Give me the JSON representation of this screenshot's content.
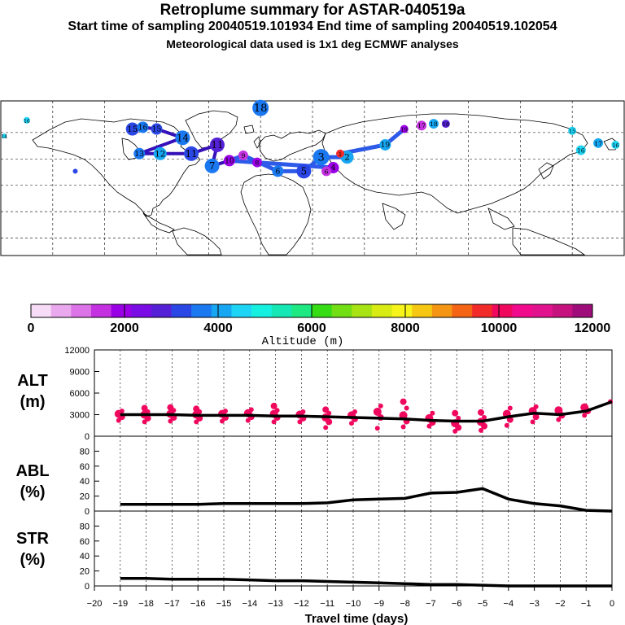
{
  "header": {
    "title": "Retroplume summary for ASTAR-040519a",
    "sampling": "Start time of sampling 20040519.101934     End time of sampling 20040519.102054",
    "met": "Meteorological data used is 1x1 deg ECMWF analyses"
  },
  "colorbar": {
    "colors": [
      "#f7dcf7",
      "#eaa9ee",
      "#dc73e6",
      "#c431e0",
      "#9a00e6",
      "#7a0de6",
      "#5521d6",
      "#2a47e6",
      "#1a78f0",
      "#17a7f2",
      "#1ed4f4",
      "#16f0e0",
      "#15e8b4",
      "#1ee881",
      "#36dc14",
      "#72de14",
      "#a8e414",
      "#d8ec14",
      "#f6f41a",
      "#f6c814",
      "#f49614",
      "#f46414",
      "#f22a2a",
      "#f0085e",
      "#f20a8c",
      "#e2128e",
      "#c6127e",
      "#9e0d7a"
    ],
    "labels": [
      "0",
      "2000",
      "4000",
      "6000",
      "8000",
      "10000",
      "12000"
    ],
    "unit_label": "Altitude (m)"
  },
  "map": {
    "trajectory_color": "#2d5ae8",
    "labels": [
      "1",
      "2",
      "3",
      "4",
      "5",
      "6",
      "7",
      "8",
      "9",
      "10",
      "11",
      "12",
      "13",
      "14",
      "15",
      "16",
      "17",
      "18",
      "19"
    ],
    "points": [
      {
        "lon": -30,
        "lat": 74,
        "size": 10,
        "color": "#1a78f0",
        "label": "18"
      },
      {
        "lon": -104,
        "lat": 62,
        "size": 8,
        "color": "#2a47e6",
        "label": "15"
      },
      {
        "lon": -98,
        "lat": 63,
        "size": 7,
        "color": "#1a78f0",
        "label": "16"
      },
      {
        "lon": -90,
        "lat": 62,
        "size": 7,
        "color": "#2a47e6",
        "label": "15"
      },
      {
        "lon": -75,
        "lat": 57,
        "size": 9,
        "color": "#1a78f0",
        "label": "14"
      },
      {
        "lon": -100,
        "lat": 48,
        "size": 7,
        "color": "#1a78f0",
        "label": "13"
      },
      {
        "lon": -88,
        "lat": 48,
        "size": 8,
        "color": "#17a7f2",
        "label": "12"
      },
      {
        "lon": -70,
        "lat": 48,
        "size": 9,
        "color": "#2a47e6",
        "label": "11"
      },
      {
        "lon": -55,
        "lat": 53,
        "size": 9,
        "color": "#5521d6",
        "label": "11"
      },
      {
        "lon": -58,
        "lat": 41,
        "size": 9,
        "color": "#1a78f0",
        "label": "7"
      },
      {
        "lon": -48,
        "lat": 44,
        "size": 7,
        "color": "#9a00e6",
        "label": "10"
      },
      {
        "lon": -40,
        "lat": 47,
        "size": 6,
        "color": "#c431e0",
        "label": "9"
      },
      {
        "lon": -32,
        "lat": 43,
        "size": 6,
        "color": "#9a00e6",
        "label": "8"
      },
      {
        "lon": -20,
        "lat": 38,
        "size": 7,
        "color": "#1a78f0",
        "label": "6"
      },
      {
        "lon": -5,
        "lat": 38,
        "size": 9,
        "color": "#2a47e6",
        "label": "5"
      },
      {
        "lon": 5,
        "lat": 46,
        "size": 10,
        "color": "#1a78f0",
        "label": "3"
      },
      {
        "lon": 12,
        "lat": 40,
        "size": 7,
        "color": "#9a00e6",
        "label": "4"
      },
      {
        "lon": 20,
        "lat": 46,
        "size": 8,
        "color": "#17a7f2",
        "label": "2"
      },
      {
        "lon": 8,
        "lat": 38,
        "size": 6,
        "color": "#c431e0",
        "label": "6"
      },
      {
        "lon": 16,
        "lat": 48,
        "size": 5,
        "color": "#f22a2a",
        "label": "1"
      },
      {
        "lon": 42,
        "lat": 53,
        "size": 7,
        "color": "#17a7f2",
        "label": "19"
      },
      {
        "lon": 53,
        "lat": 62,
        "size": 5,
        "color": "#9a00e6",
        "label": "19"
      },
      {
        "lon": 63,
        "lat": 64,
        "size": 6,
        "color": "#c431e0",
        "label": "17"
      },
      {
        "lon": 70,
        "lat": 65,
        "size": 6,
        "color": "#17a7f2",
        "label": "18"
      },
      {
        "lon": 77,
        "lat": 65,
        "size": 5,
        "color": "#5521d6",
        "label": "18"
      },
      {
        "lon": 150,
        "lat": 61,
        "size": 5,
        "color": "#1ed4f4",
        "label": "15"
      },
      {
        "lon": 165,
        "lat": 54,
        "size": 6,
        "color": "#17a7f2",
        "label": "17"
      },
      {
        "lon": 155,
        "lat": 50,
        "size": 6,
        "color": "#1ed4f4",
        "label": "16"
      },
      {
        "lon": 175,
        "lat": 53,
        "size": 5,
        "color": "#1ed4f4",
        "label": "16"
      },
      {
        "lon": -165,
        "lat": 67,
        "size": 4,
        "color": "#1ed4f4",
        "label": "16"
      },
      {
        "lon": -137,
        "lat": 38,
        "size": 3,
        "color": "#2a47e6",
        "label": ""
      },
      {
        "lon": -178,
        "lat": 58,
        "size": 3,
        "color": "#1ed4f4",
        "label": "14"
      }
    ]
  },
  "panels": {
    "alt": {
      "label_top": "ALT",
      "label_bottom": "(m)",
      "ticks": [
        "0",
        "3000",
        "6000",
        "9000",
        "12000"
      ]
    },
    "abl": {
      "label_top": "ABL",
      "label_bottom": "(%)",
      "ticks": [
        "0",
        "20",
        "40",
        "60",
        "80"
      ]
    },
    "str": {
      "label_top": "STR",
      "label_bottom": "(%)",
      "ticks": [
        "0",
        "20",
        "40",
        "60",
        "80"
      ]
    }
  },
  "chart_data": {
    "type": "line",
    "title": "Retroplume summary for ASTAR-040519a",
    "xlabel": "Travel time (days)",
    "xlim": [
      -20,
      0
    ],
    "x_tick_labels": [
      "−20",
      "−19",
      "−18",
      "−17",
      "−16",
      "−15",
      "−14",
      "−13",
      "−12",
      "−11",
      "−10",
      "−9",
      "−8",
      "−7",
      "−6",
      "−5",
      "−4",
      "−3",
      "−2",
      "−1",
      "0"
    ],
    "x": [
      -19,
      -18,
      -17,
      -16,
      -15,
      -14,
      -13,
      -12,
      -11,
      -10,
      -9,
      -8,
      -7,
      -6,
      -5,
      -4,
      -3,
      -2,
      -1,
      0
    ],
    "series": [
      {
        "name": "ALT",
        "unit": "m",
        "ylim": [
          0,
          12000
        ],
        "values": [
          3000,
          3000,
          3000,
          2900,
          2900,
          2900,
          2800,
          2800,
          2700,
          2600,
          2500,
          2400,
          2200,
          2100,
          2100,
          2700,
          3200,
          3000,
          3500,
          4800
        ]
      },
      {
        "name": "ABL",
        "unit": "%",
        "ylim": [
          0,
          100
        ],
        "values": [
          9,
          9,
          9,
          9,
          10,
          10,
          10,
          10,
          11,
          15,
          16,
          17,
          24,
          25,
          30,
          16,
          10,
          7,
          1,
          0
        ]
      },
      {
        "name": "STR",
        "unit": "%",
        "ylim": [
          0,
          100
        ],
        "values": [
          10,
          10,
          9,
          9,
          9,
          8,
          7,
          7,
          6,
          5,
          4,
          3,
          2,
          2,
          1,
          0,
          0,
          0,
          0,
          0
        ]
      }
    ],
    "alt_scatter": [
      {
        "x": -19,
        "y": [
          2200,
          2700,
          3100,
          3500
        ]
      },
      {
        "x": -18,
        "y": [
          2000,
          2500,
          3000,
          3400,
          3900
        ]
      },
      {
        "x": -17,
        "y": [
          2100,
          2600,
          3100,
          3600,
          4000
        ]
      },
      {
        "x": -16,
        "y": [
          2000,
          2500,
          3000,
          3400,
          3800
        ]
      },
      {
        "x": -15,
        "y": [
          2100,
          2600,
          3100,
          3500
        ]
      },
      {
        "x": -14,
        "y": [
          2200,
          2700,
          3200,
          3700
        ]
      },
      {
        "x": -13,
        "y": [
          2000,
          2600,
          3100,
          3600,
          4200
        ]
      },
      {
        "x": -12,
        "y": [
          2000,
          2500,
          3000,
          3400
        ]
      },
      {
        "x": -11,
        "y": [
          1200,
          2000,
          2600,
          3200,
          3700
        ]
      },
      {
        "x": -10,
        "y": [
          1800,
          2400,
          2900,
          3400
        ]
      },
      {
        "x": -9,
        "y": [
          1100,
          2600,
          3400,
          4200
        ]
      },
      {
        "x": -8,
        "y": [
          1300,
          2100,
          2900,
          3900,
          4800
        ]
      },
      {
        "x": -7,
        "y": [
          1400,
          1900,
          2500,
          3200
        ]
      },
      {
        "x": -6,
        "y": [
          700,
          1200,
          1800,
          2500,
          3200
        ]
      },
      {
        "x": -5,
        "y": [
          800,
          1400,
          2000,
          2600,
          3300
        ]
      },
      {
        "x": -4,
        "y": [
          1500,
          2300,
          3100,
          3900
        ]
      },
      {
        "x": -3,
        "y": [
          2000,
          2700,
          3500,
          4100
        ]
      },
      {
        "x": -2,
        "y": [
          2300,
          2900,
          3600
        ]
      },
      {
        "x": -1,
        "y": [
          2900,
          3500,
          4000
        ]
      },
      {
        "x": 0,
        "y": [
          4800
        ]
      }
    ]
  }
}
